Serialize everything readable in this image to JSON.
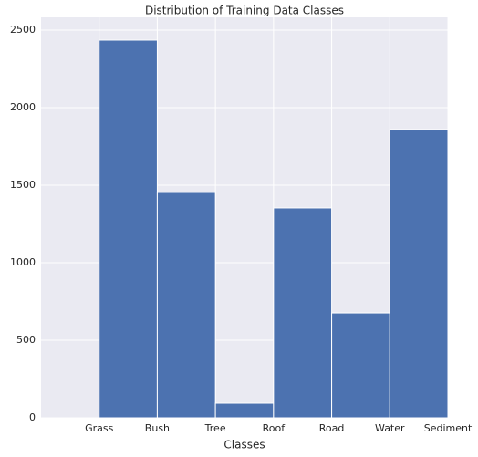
{
  "chart_data": {
    "type": "histogram",
    "title": "Distribution of Training Data Classes",
    "xlabel": "Classes",
    "bins": [
      0,
      1,
      2,
      3,
      4,
      5,
      6
    ],
    "values": [
      2435,
      1453,
      94,
      1353,
      676,
      1859
    ],
    "color": "#4c72b0",
    "xlim": [
      -1,
      6
    ],
    "xticks": [
      {
        "value": 0,
        "label": "Grass"
      },
      {
        "value": 1,
        "label": "Bush"
      },
      {
        "value": 2,
        "label": "Tree"
      },
      {
        "value": 3,
        "label": "Roof"
      },
      {
        "value": 4,
        "label": "Road"
      },
      {
        "value": 5,
        "label": "Water"
      },
      {
        "value": 6,
        "label": "Sediment"
      }
    ],
    "ylim": [
      0,
      2582
    ],
    "yticks": [
      0,
      500,
      1000,
      1500,
      2000,
      2500
    ],
    "grid": true
  }
}
